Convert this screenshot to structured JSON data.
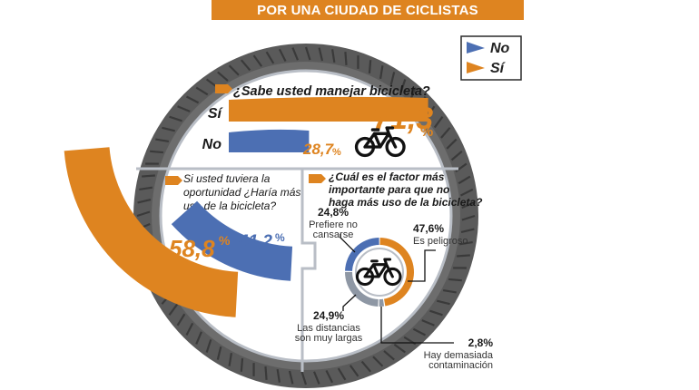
{
  "title": "POR UNA CIUDAD DE CICLISTAS",
  "legend": [
    {
      "label": "No",
      "color": "#4c6fb3"
    },
    {
      "label": "Sí",
      "color": "#de8420"
    }
  ],
  "colors": {
    "orange": "#de8420",
    "blue": "#4c6fb3",
    "navy": "#1f3a7a",
    "tire": "#5a5a5a",
    "tread": "#3a3a3a",
    "rim": "#b9bec6",
    "grey": "#8e97a4"
  },
  "icons": [
    "bicycle-icon",
    "arrow-tag-icon"
  ],
  "chart_data": [
    {
      "type": "bar",
      "question": "¿Sabe usted manejar bicicleta?",
      "categories": [
        "Sí",
        "No"
      ],
      "values": [
        71.3,
        28.7
      ],
      "value_labels": [
        "71,3",
        "28,7"
      ],
      "unit": "%"
    },
    {
      "type": "bar",
      "question": "Si usted tuviera la oportunidad ¿Haría más uso de la bicicleta?",
      "question_lines": [
        "Si usted tuviera la",
        "oportunidad ¿Haría más",
        "uso de la bicicleta?"
      ],
      "categories": [
        "Sí",
        "No"
      ],
      "values": [
        58.8,
        41.2
      ],
      "value_labels": [
        "58,8",
        "41,2"
      ],
      "unit": "%"
    },
    {
      "type": "pie",
      "question": "¿Cuál es el factor más importante para que no haga más uso de la bicicleta?",
      "question_lines": [
        "¿Cuál es el factor más",
        "importante para que no",
        "haga más uso de la bicicleta?"
      ],
      "slices": [
        {
          "label": "Es peligroso",
          "lines": [
            "Es peligroso"
          ],
          "value": 47.6,
          "value_label": "47,6%"
        },
        {
          "label": "Hay demasiada contaminación",
          "lines": [
            "Hay demasiada",
            "contaminación"
          ],
          "value": 2.8,
          "value_label": "2,8%"
        },
        {
          "label": "Las distancias son muy largas",
          "lines": [
            "Las distancias",
            "son muy largas"
          ],
          "value": 24.9,
          "value_label": "24,9%"
        },
        {
          "label": "Prefiere no cansarse",
          "lines": [
            "Prefiere no",
            "cansarse"
          ],
          "value": 24.8,
          "value_label": "24,8%"
        }
      ]
    }
  ]
}
